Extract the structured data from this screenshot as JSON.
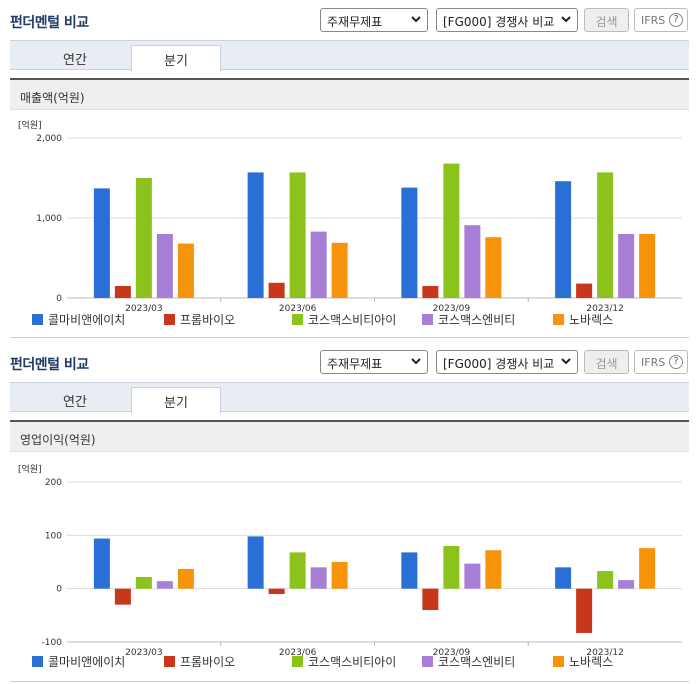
{
  "sections": [
    {
      "title": "펀더멘털 비교",
      "select_statement": "주재무제표",
      "select_compare": "[FG000] 경쟁사 비교",
      "search_label": "검색",
      "ifrs_label": "IFRS",
      "help_glyph": "?",
      "tabs": [
        {
          "label": "연간"
        },
        {
          "label": "분기"
        }
      ],
      "active_tab": "분기",
      "box_title": "매출액(억원)",
      "chart_data": {
        "type": "bar",
        "unit_label": "[억원]",
        "categories": [
          "2023/03",
          "2023/06",
          "2023/09",
          "2023/12"
        ],
        "ylim": [
          0,
          2000
        ],
        "yticks": [
          0,
          1000,
          2000
        ],
        "ytick_labels": [
          "0",
          "1,000",
          "2,000"
        ],
        "grid": true,
        "legend_position": "bottom",
        "series": [
          {
            "name": "콜마비앤에이치",
            "color": "#2a6fd6",
            "values": [
              1370,
              1570,
              1380,
              1460
            ]
          },
          {
            "name": "프롬바이오",
            "color": "#c8361b",
            "values": [
              150,
              190,
              150,
              180
            ]
          },
          {
            "name": "코스맥스비티아이",
            "color": "#8bc21b",
            "values": [
              1500,
              1570,
              1680,
              1570
            ]
          },
          {
            "name": "코스맥스엔비티",
            "color": "#a87ed6",
            "values": [
              800,
              830,
              910,
              800
            ]
          },
          {
            "name": "노바렉스",
            "color": "#f5940b",
            "values": [
              680,
              690,
              760,
              800
            ]
          }
        ]
      }
    },
    {
      "title": "펀더멘털 비교",
      "select_statement": "주재무제표",
      "select_compare": "[FG000] 경쟁사 비교",
      "search_label": "검색",
      "ifrs_label": "IFRS",
      "help_glyph": "?",
      "tabs": [
        {
          "label": "연간"
        },
        {
          "label": "분기"
        }
      ],
      "active_tab": "분기",
      "box_title": "영업이익(억원)",
      "chart_data": {
        "type": "bar",
        "unit_label": "[억원]",
        "categories": [
          "2023/03",
          "2023/06",
          "2023/09",
          "2023/12"
        ],
        "ylim": [
          -100,
          200
        ],
        "yticks": [
          -100,
          0,
          100,
          200
        ],
        "ytick_labels": [
          "-100",
          "0",
          "100",
          "200"
        ],
        "grid": true,
        "legend_position": "bottom",
        "series": [
          {
            "name": "콜마비앤에이치",
            "color": "#2a6fd6",
            "values": [
              94,
              98,
              68,
              40
            ]
          },
          {
            "name": "프롬바이오",
            "color": "#c8361b",
            "values": [
              -30,
              -10,
              -40,
              -83
            ]
          },
          {
            "name": "코스맥스비티아이",
            "color": "#8bc21b",
            "values": [
              22,
              68,
              80,
              33
            ]
          },
          {
            "name": "코스맥스엔비티",
            "color": "#a87ed6",
            "values": [
              14,
              40,
              47,
              16
            ]
          },
          {
            "name": "노바렉스",
            "color": "#f5940b",
            "values": [
              37,
              50,
              72,
              76
            ]
          }
        ]
      }
    }
  ]
}
